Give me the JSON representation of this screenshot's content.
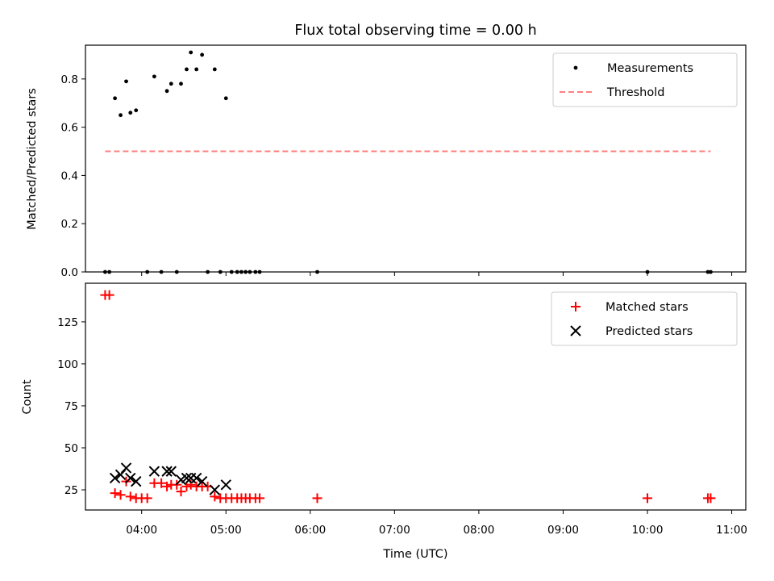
{
  "chart_data": [
    {
      "type": "scatter",
      "title": "Flux total observing time = 0.00 h",
      "xlabel": "",
      "ylabel": "Matched/Predicted stars",
      "xlim": [
        "03:20",
        "11:10"
      ],
      "ylim": [
        0,
        0.94
      ],
      "xticks": [
        "04:00",
        "05:00",
        "06:00",
        "07:00",
        "08:00",
        "09:00",
        "10:00",
        "11:00"
      ],
      "yticks": [
        0.0,
        0.2,
        0.4,
        0.6,
        0.8
      ],
      "ytick_labels": [
        "0.0",
        "0.2",
        "0.4",
        "0.6",
        "0.8"
      ],
      "grid": false,
      "legend_position": "top-right",
      "series": [
        {
          "name": "Measurements",
          "kind": "scatter",
          "marker": "dot",
          "color": "#000000",
          "points": [
            [
              "03:34",
              0.0
            ],
            [
              "03:37",
              0.0
            ],
            [
              "03:41",
              0.72
            ],
            [
              "03:45",
              0.65
            ],
            [
              "03:49",
              0.79
            ],
            [
              "03:52",
              0.66
            ],
            [
              "03:56",
              0.67
            ],
            [
              "04:04",
              0.0
            ],
            [
              "04:09",
              0.81
            ],
            [
              "04:14",
              0.0
            ],
            [
              "04:18",
              0.75
            ],
            [
              "04:21",
              0.78
            ],
            [
              "04:25",
              0.0
            ],
            [
              "04:28",
              0.78
            ],
            [
              "04:32",
              0.84
            ],
            [
              "04:35",
              0.91
            ],
            [
              "04:39",
              0.84
            ],
            [
              "04:43",
              0.9
            ],
            [
              "04:47",
              0.0
            ],
            [
              "04:52",
              0.84
            ],
            [
              "04:56",
              0.0
            ],
            [
              "05:00",
              0.72
            ],
            [
              "05:04",
              0.0
            ],
            [
              "05:08",
              0.0
            ],
            [
              "05:11",
              0.0
            ],
            [
              "05:14",
              0.0
            ],
            [
              "05:17",
              0.0
            ],
            [
              "05:21",
              0.0
            ],
            [
              "05:24",
              0.0
            ],
            [
              "06:05",
              0.0
            ],
            [
              "10:00",
              0.0
            ],
            [
              "10:43",
              0.0
            ],
            [
              "10:45",
              0.0
            ]
          ]
        },
        {
          "name": "Threshold",
          "kind": "line",
          "style": "dashed",
          "color": "#ff7f7f",
          "points": [
            [
              "03:34",
              0.5
            ],
            [
              "10:45",
              0.5
            ]
          ]
        }
      ]
    },
    {
      "type": "scatter",
      "title": "",
      "xlabel": "Time (UTC)",
      "ylabel": "Count",
      "xlim": [
        "03:20",
        "11:10"
      ],
      "ylim": [
        13,
        148
      ],
      "xticks": [
        "04:00",
        "05:00",
        "06:00",
        "07:00",
        "08:00",
        "09:00",
        "10:00",
        "11:00"
      ],
      "yticks": [
        25,
        50,
        75,
        100,
        125
      ],
      "ytick_labels": [
        "25",
        "50",
        "75",
        "100",
        "125"
      ],
      "grid": false,
      "legend_position": "top-right",
      "series": [
        {
          "name": "Matched stars",
          "marker": "plus",
          "color": "#ff0000",
          "points": [
            [
              "03:34",
              141
            ],
            [
              "03:37",
              141
            ],
            [
              "03:41",
              23
            ],
            [
              "03:45",
              22
            ],
            [
              "03:49",
              30
            ],
            [
              "03:52",
              21
            ],
            [
              "03:56",
              20
            ],
            [
              "04:00",
              20
            ],
            [
              "04:04",
              20
            ],
            [
              "04:09",
              29
            ],
            [
              "04:14",
              29
            ],
            [
              "04:18",
              27
            ],
            [
              "04:21",
              28
            ],
            [
              "04:25",
              28
            ],
            [
              "04:28",
              24
            ],
            [
              "04:32",
              27
            ],
            [
              "04:35",
              28
            ],
            [
              "04:39",
              27
            ],
            [
              "04:43",
              27
            ],
            [
              "04:47",
              27
            ],
            [
              "04:52",
              21
            ],
            [
              "04:56",
              20
            ],
            [
              "05:00",
              20
            ],
            [
              "05:04",
              20
            ],
            [
              "05:08",
              20
            ],
            [
              "05:11",
              20
            ],
            [
              "05:14",
              20
            ],
            [
              "05:17",
              20
            ],
            [
              "05:21",
              20
            ],
            [
              "05:24",
              20
            ],
            [
              "06:05",
              20
            ],
            [
              "10:00",
              20
            ],
            [
              "10:43",
              20
            ],
            [
              "10:45",
              20
            ]
          ]
        },
        {
          "name": "Predicted stars",
          "marker": "x",
          "color": "#000000",
          "points": [
            [
              "03:41",
              32
            ],
            [
              "03:45",
              34
            ],
            [
              "03:49",
              38
            ],
            [
              "03:52",
              32
            ],
            [
              "03:56",
              30
            ],
            [
              "04:09",
              36
            ],
            [
              "04:18",
              36
            ],
            [
              "04:21",
              36
            ],
            [
              "04:28",
              31
            ],
            [
              "04:32",
              32
            ],
            [
              "04:35",
              32
            ],
            [
              "04:39",
              32
            ],
            [
              "04:43",
              30
            ],
            [
              "04:52",
              25
            ],
            [
              "05:00",
              28
            ]
          ]
        }
      ]
    }
  ]
}
